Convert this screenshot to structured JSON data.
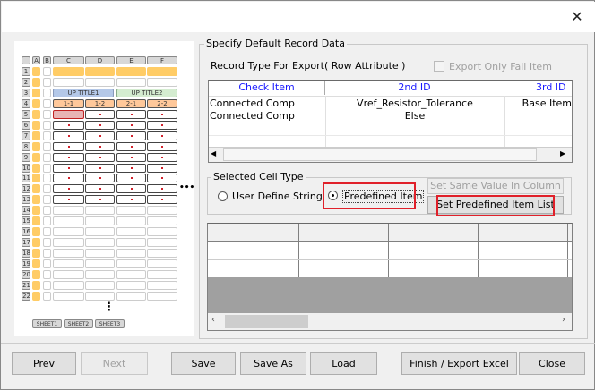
{
  "window": {
    "close_icon": "close-icon"
  },
  "preview": {
    "col_headers": [
      "",
      "A",
      "B",
      "C",
      "D",
      "E",
      "F"
    ],
    "row_count": 22,
    "up_titles": [
      "UP TITLE1",
      "UP TITLE2"
    ],
    "sub_titles": [
      "1-1",
      "1-2",
      "2-1",
      "2-2"
    ],
    "sheets": [
      "SHEET1",
      "SHEET2",
      "SHEET3"
    ],
    "more_cols": "•••",
    "more_rows": "⋮",
    "colors": {
      "orange": "#ffcc66",
      "blue": "#b4c8e8",
      "green": "#d4ecd0",
      "peach": "#ffc89a",
      "selected": "#e8b4b4",
      "dot": "#d0202a"
    }
  },
  "record": {
    "group_title": "Specify Default Record Data",
    "record_type_label": "Record Type For Export( Row Attribute )",
    "export_only_fail": "Export Only Fail Item",
    "columns": [
      "Check Item",
      "2nd ID",
      "3rd ID"
    ],
    "rows": [
      [
        "Connected Comp",
        "Vref_Resistor_Tolerance",
        "Base Item"
      ],
      [
        "Connected Comp",
        "Else",
        ""
      ]
    ]
  },
  "cell_type": {
    "group_title": "Selected Cell Type",
    "user_define": "User Define String",
    "predefined": "Predefined Item",
    "selected": "predefined",
    "set_same": "Set Same Value In Column",
    "set_predefined_list": "Set Predefined Item List"
  },
  "footer": {
    "prev": "Prev",
    "next": "Next",
    "save": "Save",
    "save_as": "Save As",
    "load": "Load",
    "finish": "Finish / Export Excel",
    "close": "Close"
  }
}
